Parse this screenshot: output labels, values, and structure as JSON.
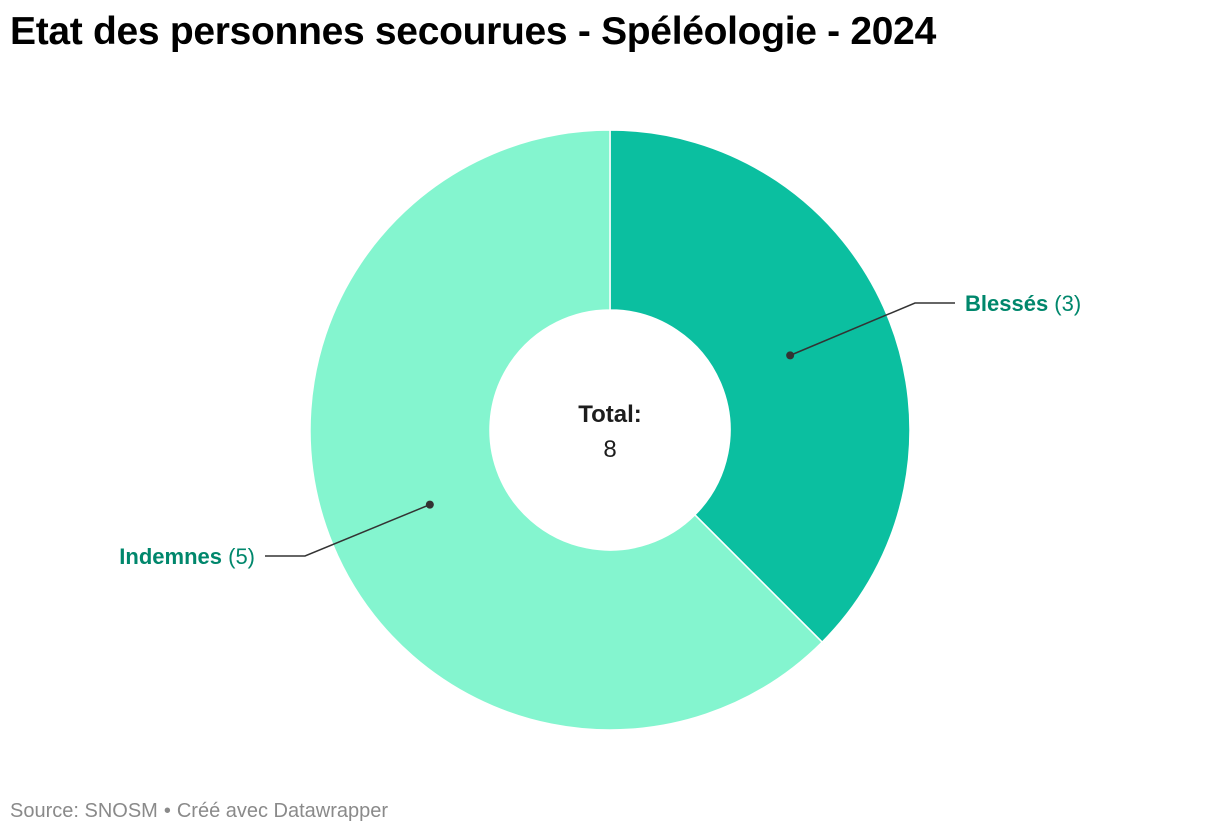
{
  "chart_data": {
    "type": "pie",
    "title": "Etat des personnes secourues - Spéléologie - 2024",
    "slices": [
      {
        "label": "Blessés",
        "value": 3,
        "value_text": "(3)",
        "color": "#0bbfa0"
      },
      {
        "label": "Indemnes",
        "value": 5,
        "value_text": "(5)",
        "color": "#84f5cf"
      }
    ],
    "center_label": "Total:",
    "center_value": "8",
    "donut": true
  },
  "colors": {
    "label_text": "#00876c",
    "slice_separator": "#ffffff",
    "connector": "#333333"
  },
  "footer": {
    "source": "Source: SNOSM",
    "separator": "•",
    "credit": "Créé avec Datawrapper"
  }
}
